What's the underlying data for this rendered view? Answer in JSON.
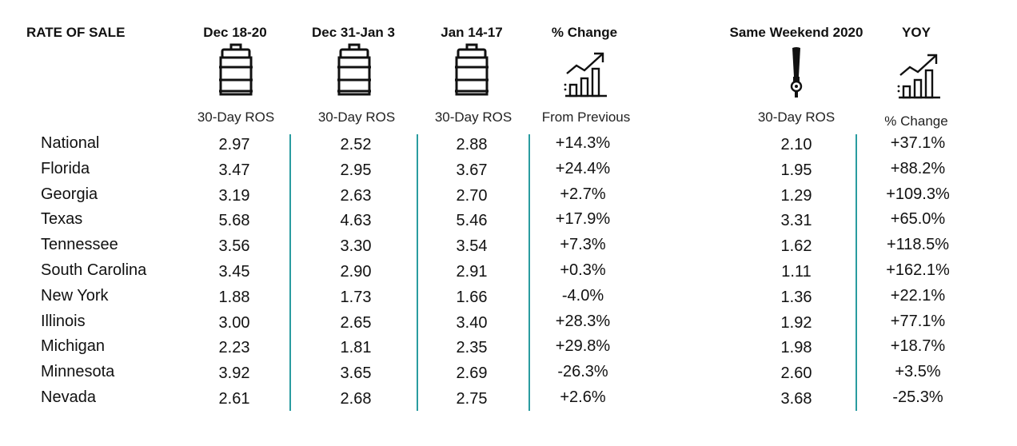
{
  "title": "RATE OF SALE",
  "columns": [
    {
      "key": "dec1820",
      "header": "Dec 18-20",
      "sub": "30-Day ROS",
      "icon": "keg-icon"
    },
    {
      "key": "dec31jan3",
      "header": "Dec 31-Jan 3",
      "sub": "30-Day ROS",
      "icon": "keg-icon"
    },
    {
      "key": "jan1417",
      "header": "Jan 14-17",
      "sub": "30-Day ROS",
      "icon": "keg-icon"
    },
    {
      "key": "pct_change",
      "header": "% Change",
      "sub": "From Previous",
      "icon": "growth-chart-icon"
    },
    {
      "key": "same_weekend_2020",
      "header": "Same Weekend 2020",
      "sub": "30-Day ROS",
      "icon": "beer-tap-icon"
    },
    {
      "key": "yoy",
      "header": "YOY",
      "sub": "% Change",
      "icon": "growth-chart-icon"
    }
  ],
  "colors": {
    "divider": "#2a9ca0"
  },
  "chart_data": {
    "type": "table",
    "title": "RATE OF SALE",
    "columns": [
      "Dec 18-20",
      "Dec 31-Jan 3",
      "Jan 14-17",
      "% Change",
      "Same Weekend 2020",
      "YOY"
    ],
    "rows": [
      {
        "label": "National",
        "values": [
          "2.97",
          "2.52",
          "2.88",
          "+14.3%",
          "2.10",
          "+37.1%"
        ]
      },
      {
        "label": "Florida",
        "values": [
          "3.47",
          "2.95",
          "3.67",
          "+24.4%",
          "1.95",
          "+88.2%"
        ]
      },
      {
        "label": "Georgia",
        "values": [
          "3.19",
          "2.63",
          "2.70",
          "+2.7%",
          "1.29",
          "+109.3%"
        ]
      },
      {
        "label": "Texas",
        "values": [
          "5.68",
          "4.63",
          "5.46",
          "+17.9%",
          "3.31",
          "+65.0%"
        ]
      },
      {
        "label": "Tennessee",
        "values": [
          "3.56",
          "3.30",
          "3.54",
          "+7.3%",
          "1.62",
          "+118.5%"
        ]
      },
      {
        "label": "South Carolina",
        "values": [
          "3.45",
          "2.90",
          "2.91",
          "+0.3%",
          "1.11",
          "+162.1%"
        ]
      },
      {
        "label": "New York",
        "values": [
          "1.88",
          "1.73",
          "1.66",
          "-4.0%",
          "1.36",
          "+22.1%"
        ]
      },
      {
        "label": "Illinois",
        "values": [
          "3.00",
          "2.65",
          "3.40",
          "+28.3%",
          "1.92",
          "+77.1%"
        ]
      },
      {
        "label": "Michigan",
        "values": [
          "2.23",
          "1.81",
          "2.35",
          "+29.8%",
          "1.98",
          "+18.7%"
        ]
      },
      {
        "label": "Minnesota",
        "values": [
          "3.92",
          "3.65",
          "2.69",
          "-26.3%",
          "2.60",
          "+3.5%"
        ]
      },
      {
        "label": "Nevada",
        "values": [
          "2.61",
          "2.68",
          "2.75",
          "+2.6%",
          "3.68",
          "-25.3%"
        ]
      }
    ]
  }
}
